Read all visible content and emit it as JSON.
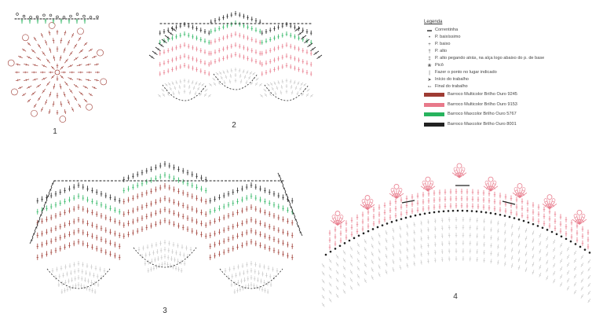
{
  "diagram_labels": [
    "1",
    "2",
    "3",
    "4"
  ],
  "legend": {
    "title": "Legenda",
    "symbols": [
      {
        "icon": "chain-icon",
        "glyph": "▬",
        "label": "Correntinha"
      },
      {
        "icon": "slip-stitch-icon",
        "glyph": "•",
        "label": "P. baixíssimo"
      },
      {
        "icon": "single-crochet-icon",
        "glyph": "+",
        "label": "P. baixo"
      },
      {
        "icon": "double-crochet-icon",
        "glyph": "†",
        "label": "P. alto"
      },
      {
        "icon": "back-loop-double-crochet-icon",
        "glyph": "‡",
        "label": "P. alto pegando atrás, na alça logo abaixo do p. de base"
      },
      {
        "icon": "picot-icon",
        "glyph": "❀",
        "label": "Picô"
      },
      {
        "icon": "indicated-place-icon",
        "glyph": "|",
        "label": "Fazer o ponto no lugar indicado"
      },
      {
        "icon": "start-arrow-icon",
        "glyph": "➤",
        "label": "Início do trabalho"
      },
      {
        "icon": "end-arrow-icon",
        "glyph": "➳",
        "label": "Final do trabalho"
      }
    ],
    "yarns": [
      {
        "color": "#9e3b33",
        "label": "Barroco Multicolor Brilho Ouro 9245"
      },
      {
        "color": "#e8798a",
        "label": "Barroco Multicolor Brilho Ouro 9153"
      },
      {
        "color": "#27b35d",
        "label": "Barroco Maxcolor Brilho Ouro 5767"
      },
      {
        "color": "#222222",
        "label": "Barroco Maxcolor Brilho Ouro 8001"
      }
    ]
  },
  "colors": {
    "brown": "#9e3b33",
    "pink": "#e8798a",
    "green": "#27b35d",
    "black": "#222222",
    "gray": "#c8c8c8"
  }
}
